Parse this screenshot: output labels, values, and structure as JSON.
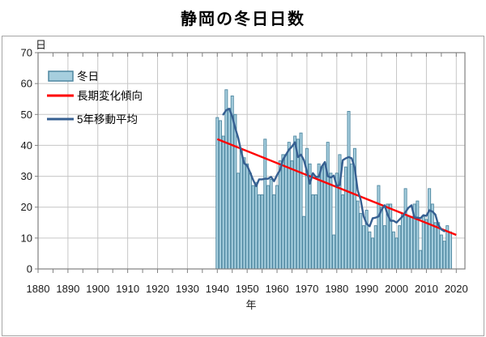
{
  "title": "静岡の冬日日数",
  "chart_data": {
    "type": "bar",
    "title": "静岡の冬日日数",
    "x_axis": {
      "label": "年",
      "min": 1880,
      "max": 2023,
      "ticks": [
        1880,
        1890,
        1900,
        1910,
        1920,
        1930,
        1940,
        1950,
        1960,
        1970,
        1980,
        1990,
        2000,
        2010,
        2020
      ],
      "minor_tick_step": 5
    },
    "y_axis": {
      "label": "日",
      "min": 0,
      "max": 70,
      "ticks": [
        0,
        10,
        20,
        30,
        40,
        50,
        60,
        70
      ]
    },
    "grid": true,
    "legend": {
      "position": "top-left-inside",
      "items": [
        "冬日",
        "長期変化傾向",
        "5年移動平均"
      ]
    },
    "series": [
      {
        "name": "冬日",
        "type": "bar",
        "start_year": 1940,
        "values": [
          49,
          48,
          43,
          58,
          52,
          56,
          50,
          31,
          39,
          36,
          34,
          31,
          27,
          28,
          24,
          24,
          42,
          27,
          29,
          24,
          27,
          35,
          37,
          37,
          41,
          35,
          43,
          42,
          44,
          17,
          39,
          34,
          24,
          24,
          34,
          33,
          34,
          41,
          31,
          11,
          31,
          37,
          24,
          33,
          51,
          34,
          39,
          22,
          18,
          14,
          19,
          12,
          10,
          14,
          27,
          20,
          14,
          21,
          21,
          12,
          10,
          14,
          18,
          26,
          17,
          17,
          21,
          22,
          6,
          17,
          16,
          26,
          21,
          15,
          15,
          11,
          9,
          14,
          12
        ],
        "fill": "#a6cede",
        "stroke": "#4e87a0"
      },
      {
        "name": "長期変化傾向",
        "type": "line",
        "x": [
          1940,
          2020
        ],
        "y": [
          42,
          11
        ],
        "color": "#ff0000"
      },
      {
        "name": "5年移動平均",
        "type": "line",
        "derived": "centered 5-year moving average of 冬日",
        "color": "#365f91"
      }
    ],
    "colors": {
      "grid": "#c6c6c6",
      "plot_border": "#808080",
      "frame_border": "#a6a6a6",
      "tick": "#808080"
    }
  }
}
